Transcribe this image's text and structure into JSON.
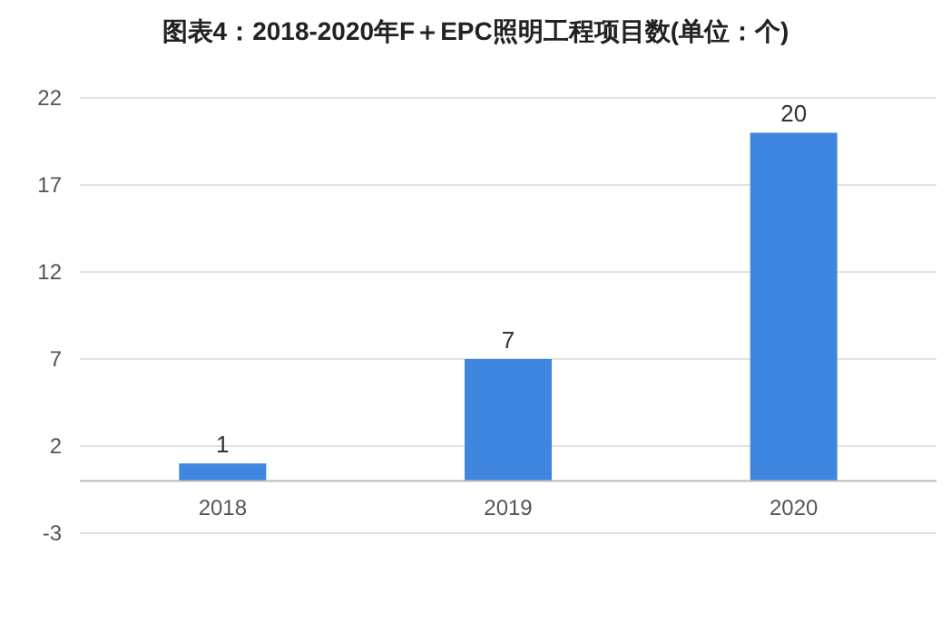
{
  "chart_data": {
    "type": "bar",
    "title": "图表4：2018-2020年F＋EPC照明工程项目数(单位：个)",
    "categories": [
      "2018",
      "2019",
      "2020"
    ],
    "values": [
      1,
      7,
      20
    ],
    "color": "#3f86e0",
    "ylim": [
      -3,
      22
    ],
    "yticks": [
      -3,
      2,
      7,
      12,
      17,
      22
    ],
    "grid": "y",
    "data_labels": true
  }
}
